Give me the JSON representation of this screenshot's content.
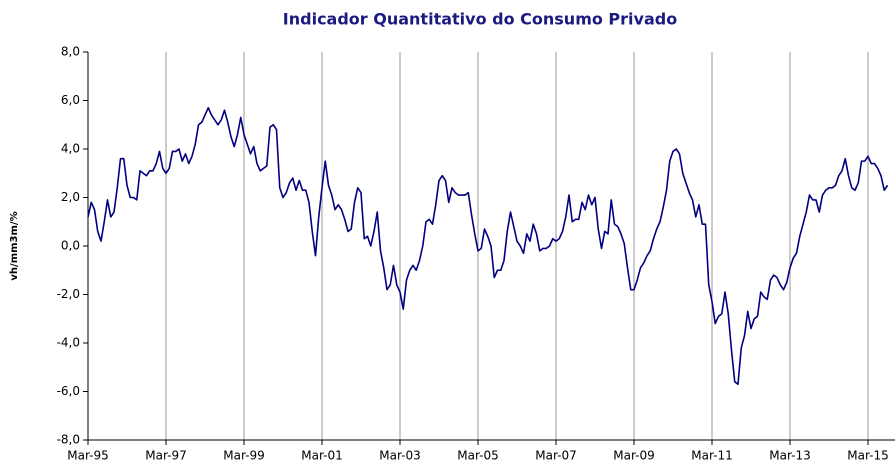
{
  "chart_data": {
    "type": "line",
    "title": "Indicador Quantitativo do Consumo Privado",
    "y_label": "vh/mm3m/%",
    "categories": [
      "Mar-95",
      null,
      null,
      null,
      null,
      null,
      null,
      null,
      null,
      null,
      null,
      null,
      null,
      null,
      null,
      null,
      null,
      null,
      null,
      null,
      null,
      null,
      null,
      null,
      "Mar-97",
      null,
      null,
      null,
      null,
      null,
      null,
      null,
      null,
      null,
      null,
      null,
      null,
      null,
      null,
      null,
      null,
      null,
      null,
      null,
      null,
      null,
      null,
      null,
      "Mar-99",
      null,
      null,
      null,
      null,
      null,
      null,
      null,
      null,
      null,
      null,
      null,
      null,
      null,
      null,
      null,
      null,
      null,
      null,
      null,
      null,
      null,
      null,
      null,
      "Mar-01",
      null,
      null,
      null,
      null,
      null,
      null,
      null,
      null,
      null,
      null,
      null,
      null,
      null,
      null,
      null,
      null,
      null,
      null,
      null,
      null,
      null,
      null,
      null,
      "Mar-03",
      null,
      null,
      null,
      null,
      null,
      null,
      null,
      null,
      null,
      null,
      null,
      null,
      null,
      null,
      null,
      null,
      null,
      null,
      null,
      null,
      null,
      null,
      null,
      "Mar-05",
      null,
      null,
      null,
      null,
      null,
      null,
      null,
      null,
      null,
      null,
      null,
      null,
      null,
      null,
      null,
      null,
      null,
      null,
      null,
      null,
      null,
      null,
      null,
      "Mar-07",
      null,
      null,
      null,
      null,
      null,
      null,
      null,
      null,
      null,
      null,
      null,
      null,
      null,
      null,
      null,
      null,
      null,
      null,
      null,
      null,
      null,
      null,
      null,
      "Mar-09",
      null,
      null,
      null,
      null,
      null,
      null,
      null,
      null,
      null,
      null,
      null,
      null,
      null,
      null,
      null,
      null,
      null,
      null,
      null,
      null,
      null,
      null,
      null,
      "Mar-11",
      null,
      null,
      null,
      null,
      null,
      null,
      null,
      null,
      null,
      null,
      null,
      null,
      null,
      null,
      null,
      null,
      null,
      null,
      null,
      null,
      null,
      null,
      null,
      "Mar-13",
      null,
      null,
      null,
      null,
      null,
      null,
      null,
      null,
      null,
      null,
      null,
      null,
      null,
      null,
      null,
      null,
      null,
      null,
      null,
      null,
      null,
      null,
      null,
      "Mar-15",
      null,
      null,
      null,
      null,
      null,
      null
    ],
    "series": [
      {
        "name": "Consumo Privado",
        "color": "#000080",
        "values": [
          1.2,
          1.8,
          1.5,
          0.6,
          0.2,
          1.0,
          1.9,
          1.2,
          1.4,
          2.4,
          3.6,
          3.6,
          2.5,
          2.0,
          2.0,
          1.9,
          3.1,
          3.0,
          2.9,
          3.1,
          3.1,
          3.4,
          3.9,
          3.2,
          3.0,
          3.2,
          3.9,
          3.9,
          4.0,
          3.5,
          3.8,
          3.4,
          3.7,
          4.2,
          5.0,
          5.1,
          5.4,
          5.7,
          5.4,
          5.2,
          5.0,
          5.2,
          5.6,
          5.1,
          4.5,
          4.1,
          4.6,
          5.3,
          4.6,
          4.2,
          3.8,
          4.1,
          3.4,
          3.1,
          3.2,
          3.3,
          4.9,
          5.0,
          4.8,
          2.4,
          2.0,
          2.2,
          2.6,
          2.8,
          2.3,
          2.7,
          2.3,
          2.3,
          1.8,
          0.6,
          -0.4,
          1.2,
          2.4,
          3.5,
          2.5,
          2.1,
          1.5,
          1.7,
          1.5,
          1.1,
          0.6,
          0.7,
          1.8,
          2.4,
          2.2,
          0.3,
          0.4,
          0.0,
          0.6,
          1.4,
          -0.2,
          -0.9,
          -1.8,
          -1.6,
          -0.8,
          -1.6,
          -1.9,
          -2.6,
          -1.4,
          -1.0,
          -0.8,
          -1.0,
          -0.6,
          0.0,
          1.0,
          1.1,
          0.9,
          1.7,
          2.7,
          2.9,
          2.7,
          1.8,
          2.4,
          2.2,
          2.1,
          2.1,
          2.1,
          2.2,
          1.3,
          0.5,
          -0.2,
          -0.1,
          0.7,
          0.4,
          0.0,
          -1.3,
          -1.0,
          -1.0,
          -0.6,
          0.6,
          1.4,
          0.8,
          0.2,
          0.0,
          -0.3,
          0.5,
          0.2,
          0.9,
          0.5,
          -0.2,
          -0.1,
          -0.1,
          0.0,
          0.3,
          0.2,
          0.3,
          0.6,
          1.2,
          2.1,
          1.0,
          1.1,
          1.1,
          1.8,
          1.5,
          2.1,
          1.7,
          2.0,
          0.7,
          -0.1,
          0.6,
          0.5,
          1.9,
          0.9,
          0.8,
          0.5,
          0.1,
          -0.9,
          -1.8,
          -1.8,
          -1.4,
          -0.9,
          -0.7,
          -0.4,
          -0.2,
          0.3,
          0.7,
          1.0,
          1.6,
          2.3,
          3.5,
          3.9,
          4.0,
          3.8,
          3.0,
          2.6,
          2.2,
          1.9,
          1.2,
          1.7,
          0.9,
          0.9,
          -1.6,
          -2.3,
          -3.2,
          -2.9,
          -2.8,
          -1.9,
          -2.8,
          -4.3,
          -5.6,
          -5.7,
          -4.2,
          -3.7,
          -2.7,
          -3.4,
          -3.0,
          -2.9,
          -1.9,
          -2.1,
          -2.2,
          -1.4,
          -1.2,
          -1.3,
          -1.6,
          -1.8,
          -1.5,
          -0.9,
          -0.5,
          -0.3,
          0.4,
          0.9,
          1.4,
          2.1,
          1.9,
          1.9,
          1.4,
          2.1,
          2.3,
          2.4,
          2.4,
          2.5,
          2.9,
          3.1,
          3.6,
          2.9,
          2.4,
          2.3,
          2.6,
          3.5,
          3.5,
          3.7,
          3.4,
          3.4,
          3.2,
          2.9,
          2.3,
          2.5
        ]
      }
    ],
    "ylim": [
      -8,
      8
    ],
    "yticks": [
      {
        "value": -8,
        "label": "-8,0"
      },
      {
        "value": -6,
        "label": "-6,0"
      },
      {
        "value": -4,
        "label": "-4,0"
      },
      {
        "value": -2,
        "label": "-2,0"
      },
      {
        "value": 0,
        "label": "0,0"
      },
      {
        "value": 2,
        "label": "2,0"
      },
      {
        "value": 4,
        "label": "4,0"
      },
      {
        "value": 6,
        "label": "6,0"
      },
      {
        "value": 8,
        "label": "8,0"
      }
    ],
    "grid": true
  }
}
